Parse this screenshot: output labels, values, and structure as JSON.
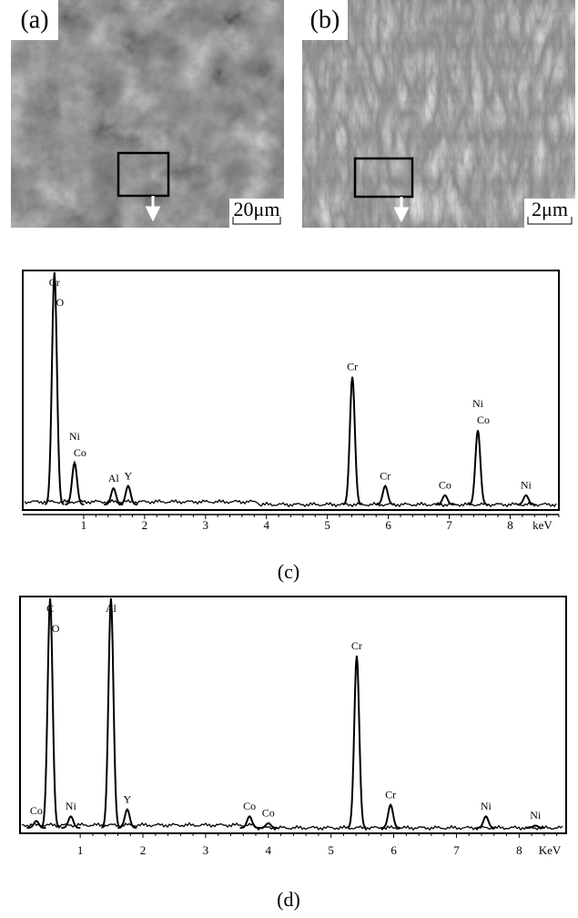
{
  "panels": [
    {
      "label": "(a)",
      "scale_bar": "20μm"
    },
    {
      "label": "(b)",
      "scale_bar": "2μm"
    }
  ],
  "chart_data": [
    {
      "type": "spectrum",
      "caption": "(c)",
      "x_unit": "keV",
      "xlim": [
        0,
        8.8
      ],
      "xticks": [
        1,
        2,
        3,
        4,
        5,
        6,
        7,
        8
      ],
      "peaks": [
        {
          "x": 0.52,
          "y": 100,
          "labels": [
            "Cr",
            "O"
          ]
        },
        {
          "x": 0.85,
          "y": 18,
          "labels": [
            "Ni",
            "Co"
          ]
        },
        {
          "x": 1.49,
          "y": 7,
          "labels": [
            "Al"
          ]
        },
        {
          "x": 1.73,
          "y": 8,
          "labels": [
            "Y"
          ]
        },
        {
          "x": 5.41,
          "y": 55,
          "labels": [
            "Cr"
          ]
        },
        {
          "x": 5.95,
          "y": 8,
          "labels": [
            "Cr"
          ]
        },
        {
          "x": 6.93,
          "y": 4,
          "labels": [
            "Co"
          ]
        },
        {
          "x": 7.47,
          "y": 32,
          "labels": [
            "Ni",
            "Co"
          ]
        },
        {
          "x": 8.26,
          "y": 4,
          "labels": [
            "Ni"
          ]
        }
      ]
    },
    {
      "type": "spectrum",
      "caption": "(d)",
      "x_unit": "KeV",
      "xlim": [
        0.04,
        8.75
      ],
      "xticks": [
        1,
        2,
        3,
        4,
        5,
        6,
        7,
        8
      ],
      "peaks": [
        {
          "x": 0.3,
          "y": 3,
          "labels": [
            "Co"
          ]
        },
        {
          "x": 0.52,
          "y": 100,
          "labels": [
            "C",
            "O"
          ]
        },
        {
          "x": 0.85,
          "y": 5,
          "labels": [
            "Ni"
          ]
        },
        {
          "x": 1.49,
          "y": 100,
          "labels": [
            "Al"
          ]
        },
        {
          "x": 1.75,
          "y": 8,
          "labels": [
            "Y"
          ]
        },
        {
          "x": 3.7,
          "y": 5,
          "labels": [
            "Co"
          ]
        },
        {
          "x": 4.0,
          "y": 2,
          "labels": [
            "Co"
          ]
        },
        {
          "x": 5.41,
          "y": 75,
          "labels": [
            "Cr"
          ]
        },
        {
          "x": 5.95,
          "y": 10,
          "labels": [
            "Cr"
          ]
        },
        {
          "x": 7.47,
          "y": 5,
          "labels": [
            "Ni"
          ]
        },
        {
          "x": 8.26,
          "y": 1,
          "labels": [
            "Ni"
          ]
        }
      ]
    }
  ]
}
